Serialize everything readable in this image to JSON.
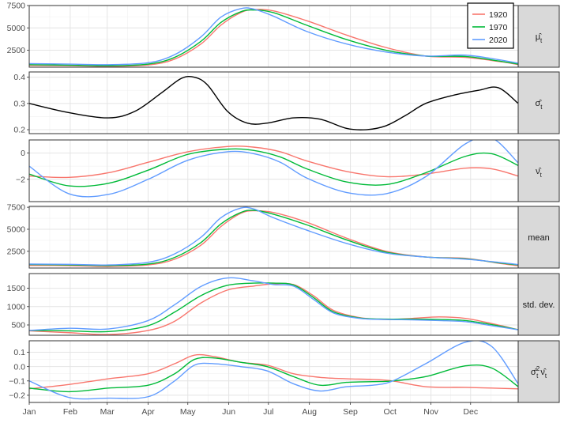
{
  "chart_data": {
    "type": "line",
    "x_label_ticks": [
      "Jan",
      "Feb",
      "Mar",
      "Apr",
      "May",
      "Jun",
      "Jul",
      "Aug",
      "Sep",
      "Oct",
      "Nov",
      "Dec"
    ],
    "x_tick_positions_days": [
      0,
      31,
      59,
      90,
      120,
      151,
      181,
      212,
      243,
      273,
      304,
      334
    ],
    "x_range_days": [
      0,
      370
    ],
    "legend": {
      "placement": "top-right",
      "entries": [
        "1920",
        "1970",
        "2020"
      ]
    },
    "colors": {
      "1920": "#F8766D",
      "1970": "#00BA38",
      "2020": "#619CFF",
      "single": "#000000"
    },
    "grid": true,
    "panels": [
      {
        "strip": "μ̂",
        "strip_sub": "t",
        "ylim": [
          600,
          7500
        ],
        "yticks": [
          2500,
          5000,
          7500
        ],
        "series": [
          {
            "name": "1920",
            "x": [
              0,
              30,
              60,
              90,
              110,
              130,
              145,
              160,
              170,
              185,
              210,
              240,
              270,
              300,
              330,
              355,
              370
            ],
            "y": [
              800,
              770,
              700,
              850,
              1500,
              3200,
              5300,
              6700,
              7050,
              6900,
              5800,
              4200,
              2800,
              1850,
              1700,
              1250,
              900
            ]
          },
          {
            "name": "1970",
            "x": [
              0,
              30,
              60,
              90,
              110,
              130,
              145,
              160,
              170,
              185,
              210,
              240,
              270,
              300,
              330,
              355,
              370
            ],
            "y": [
              880,
              830,
              760,
              950,
              1700,
              3500,
              5600,
              6800,
              7000,
              6700,
              5300,
              3700,
              2500,
              1850,
              1800,
              1300,
              950
            ]
          },
          {
            "name": "2020",
            "x": [
              0,
              30,
              60,
              90,
              110,
              130,
              145,
              160,
              170,
              185,
              210,
              240,
              270,
              300,
              330,
              355,
              370
            ],
            "y": [
              1000,
              950,
              880,
              1100,
              2000,
              4000,
              6200,
              7150,
              7100,
              6300,
              4600,
              3200,
              2300,
              1850,
              1950,
              1450,
              1050
            ]
          }
        ]
      },
      {
        "strip": "σ̂",
        "strip_sub": "t",
        "ylim": [
          0.185,
          0.42
        ],
        "yticks": [
          0.2,
          0.3,
          0.4
        ],
        "series": [
          {
            "name": "",
            "x": [
              0,
              30,
              60,
              80,
              100,
              115,
              125,
              135,
              150,
              165,
              180,
              200,
              220,
              240,
              255,
              270,
              285,
              300,
              320,
              340,
              355,
              370
            ],
            "y": [
              0.3,
              0.265,
              0.245,
              0.27,
              0.34,
              0.395,
              0.4,
              0.37,
              0.27,
              0.225,
              0.225,
              0.245,
              0.24,
              0.205,
              0.2,
              0.215,
              0.255,
              0.3,
              0.33,
              0.35,
              0.36,
              0.3
            ]
          }
        ]
      },
      {
        "strip": "ν̂",
        "strip_sub": "t",
        "ylim": [
          -3.7,
          1.0
        ],
        "yticks": [
          -2,
          0
        ],
        "series": [
          {
            "name": "1920",
            "x": [
              0,
              30,
              60,
              90,
              120,
              150,
              170,
              190,
              210,
              240,
              270,
              300,
              330,
              350,
              370
            ],
            "y": [
              -1.75,
              -1.85,
              -1.5,
              -0.7,
              0.1,
              0.5,
              0.45,
              0.1,
              -0.6,
              -1.4,
              -1.8,
              -1.6,
              -1.15,
              -1.2,
              -1.75
            ]
          },
          {
            "name": "1970",
            "x": [
              0,
              30,
              60,
              90,
              120,
              150,
              170,
              190,
              210,
              240,
              270,
              300,
              330,
              350,
              370
            ],
            "y": [
              -1.6,
              -2.5,
              -2.3,
              -1.3,
              -0.1,
              0.3,
              0.2,
              -0.3,
              -1.2,
              -2.2,
              -2.4,
              -1.5,
              -0.25,
              -0.05,
              -0.95
            ]
          },
          {
            "name": "2020",
            "x": [
              0,
              30,
              60,
              90,
              120,
              150,
              170,
              190,
              210,
              240,
              270,
              300,
              330,
              350,
              370
            ],
            "y": [
              -1.0,
              -3.1,
              -3.15,
              -2.0,
              -0.55,
              0.1,
              -0.05,
              -0.7,
              -1.9,
              -3.0,
              -3.1,
              -1.8,
              0.7,
              1.15,
              -0.75
            ]
          }
        ]
      },
      {
        "strip": "mean",
        "strip_sub": "",
        "ylim": [
          600,
          7600
        ],
        "yticks": [
          2500,
          5000,
          7500
        ],
        "series": [
          {
            "name": "1920",
            "x": [
              0,
              30,
              60,
              90,
              110,
              130,
              145,
              160,
              170,
              185,
              210,
              240,
              270,
              300,
              330,
              355,
              370
            ],
            "y": [
              900,
              880,
              780,
              950,
              1600,
              3200,
              5300,
              6800,
              7100,
              6900,
              5800,
              4000,
              2500,
              1850,
              1700,
              1150,
              850
            ]
          },
          {
            "name": "1970",
            "x": [
              0,
              30,
              60,
              90,
              110,
              130,
              145,
              160,
              170,
              185,
              210,
              240,
              270,
              300,
              330,
              355,
              370
            ],
            "y": [
              1000,
              960,
              880,
              1050,
              1800,
              3500,
              5600,
              6900,
              7150,
              6700,
              5500,
              3800,
              2400,
              1850,
              1650,
              1200,
              950
            ]
          },
          {
            "name": "2020",
            "x": [
              0,
              30,
              60,
              90,
              110,
              130,
              145,
              160,
              170,
              185,
              210,
              240,
              270,
              300,
              330,
              355,
              370
            ],
            "y": [
              1050,
              1020,
              950,
              1250,
              2200,
              4100,
              6300,
              7400,
              7300,
              6300,
              4900,
              3400,
              2300,
              1850,
              1600,
              1250,
              1000
            ]
          }
        ]
      },
      {
        "strip": "std. dev.",
        "strip_sub": "",
        "ylim": [
          220,
          1900
        ],
        "yticks": [
          500,
          1000,
          1500
        ],
        "series": [
          {
            "name": "1920",
            "x": [
              0,
              30,
              60,
              90,
              110,
              130,
              150,
              170,
              185,
              200,
              215,
              230,
              250,
              270,
              290,
              310,
              330,
              350,
              370
            ],
            "y": [
              340,
              290,
              240,
              350,
              600,
              1100,
              1450,
              1560,
              1620,
              1600,
              1300,
              900,
              700,
              650,
              680,
              720,
              680,
              540,
              370
            ]
          },
          {
            "name": "1970",
            "x": [
              0,
              30,
              60,
              90,
              110,
              130,
              150,
              170,
              185,
              200,
              215,
              230,
              250,
              270,
              290,
              310,
              330,
              350,
              370
            ],
            "y": [
              350,
              340,
              320,
              480,
              850,
              1300,
              1580,
              1640,
              1640,
              1590,
              1250,
              860,
              690,
              660,
              660,
              650,
              620,
              510,
              370
            ]
          },
          {
            "name": "2020",
            "x": [
              0,
              30,
              60,
              90,
              110,
              130,
              150,
              170,
              185,
              200,
              215,
              230,
              250,
              270,
              290,
              310,
              330,
              350,
              370
            ],
            "y": [
              350,
              410,
              390,
              620,
              1050,
              1550,
              1780,
              1700,
              1600,
              1560,
              1200,
              830,
              680,
              650,
              640,
              620,
              590,
              480,
              370
            ]
          }
        ]
      },
      {
        "strip": "σ̂",
        "strip_sub": "t",
        "strip_sup": "2",
        "strip_tail": "ν̂",
        "strip_tail_sub": "t",
        "ylim": [
          -0.25,
          0.18
        ],
        "yticks": [
          -0.2,
          -0.1,
          0.0,
          0.1
        ],
        "series": [
          {
            "name": "1920",
            "x": [
              0,
              30,
              60,
              90,
              110,
              125,
              140,
              160,
              180,
              200,
              220,
              240,
              260,
              275,
              300,
              330,
              350,
              370
            ],
            "y": [
              -0.155,
              -0.125,
              -0.085,
              -0.05,
              0.02,
              0.08,
              0.07,
              0.03,
              0.01,
              -0.05,
              -0.075,
              -0.085,
              -0.09,
              -0.1,
              -0.14,
              -0.145,
              -0.15,
              -0.155
            ]
          },
          {
            "name": "1970",
            "x": [
              0,
              30,
              60,
              90,
              110,
              125,
              140,
              160,
              180,
              200,
              220,
              240,
              260,
              275,
              300,
              330,
              350,
              370
            ],
            "y": [
              -0.15,
              -0.175,
              -0.15,
              -0.13,
              -0.05,
              0.05,
              0.06,
              0.03,
              0.0,
              -0.07,
              -0.13,
              -0.11,
              -0.105,
              -0.1,
              -0.07,
              0.005,
              -0.01,
              -0.14
            ]
          },
          {
            "name": "2020",
            "x": [
              0,
              30,
              60,
              90,
              110,
              125,
              140,
              160,
              180,
              200,
              220,
              240,
              260,
              275,
              300,
              330,
              350,
              370
            ],
            "y": [
              -0.1,
              -0.215,
              -0.22,
              -0.21,
              -0.1,
              0.01,
              0.02,
              0.0,
              -0.03,
              -0.12,
              -0.17,
              -0.14,
              -0.13,
              -0.1,
              0.02,
              0.17,
              0.14,
              -0.12
            ]
          }
        ]
      }
    ]
  }
}
